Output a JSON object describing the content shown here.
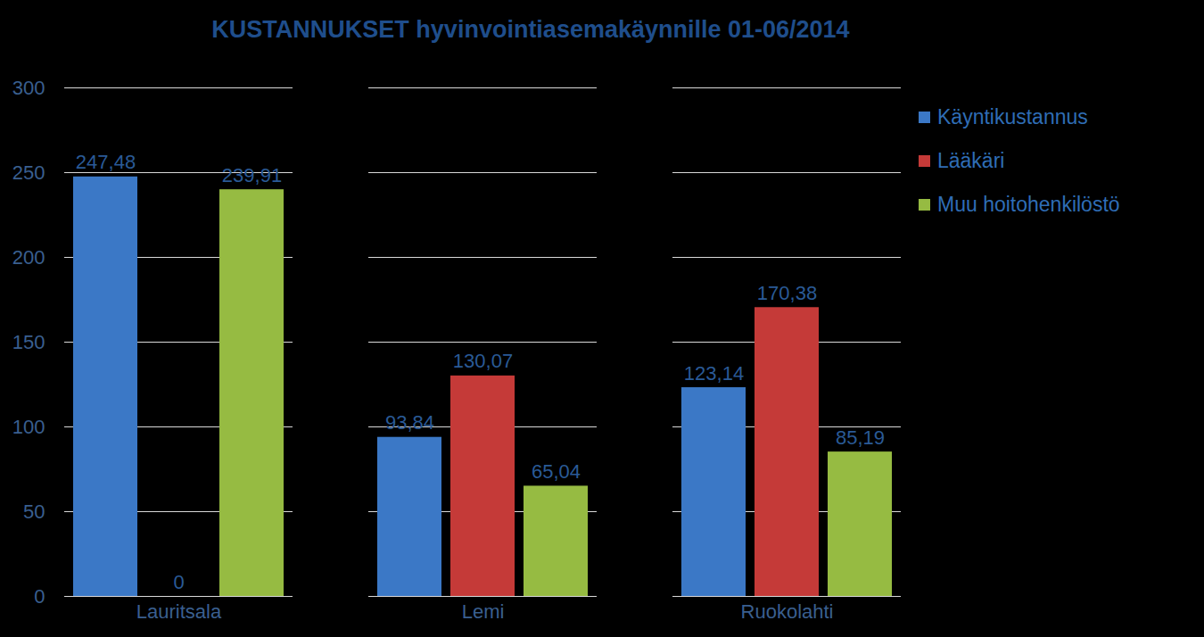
{
  "chart_data": {
    "type": "bar",
    "title": "KUSTANNUKSET hyvinvointiasemakäynnille 01-06/2014",
    "categories": [
      "Lauritsala",
      "Lemi",
      "Ruokolahti"
    ],
    "series": [
      {
        "name": "Käyntikustannus",
        "color": "#3b78c6",
        "values": [
          247.48,
          93.84,
          123.14
        ],
        "value_labels": [
          "247,48",
          "93,84",
          "123,14"
        ]
      },
      {
        "name": "Lääkäri",
        "color": "#c53a38",
        "values": [
          0,
          130.07,
          170.38
        ],
        "value_labels": [
          "0",
          "130,07",
          "170,38"
        ]
      },
      {
        "name": "Muu hoitohenkilöstö",
        "color": "#96bb42",
        "values": [
          239.91,
          65.04,
          85.19
        ],
        "value_labels": [
          "239,91",
          "65,04",
          "85,19"
        ]
      }
    ],
    "ylim": [
      0,
      300
    ],
    "yticks": [
      0,
      50,
      100,
      150,
      200,
      250,
      300
    ],
    "grid": true,
    "legend": "right",
    "data_labels": true
  }
}
